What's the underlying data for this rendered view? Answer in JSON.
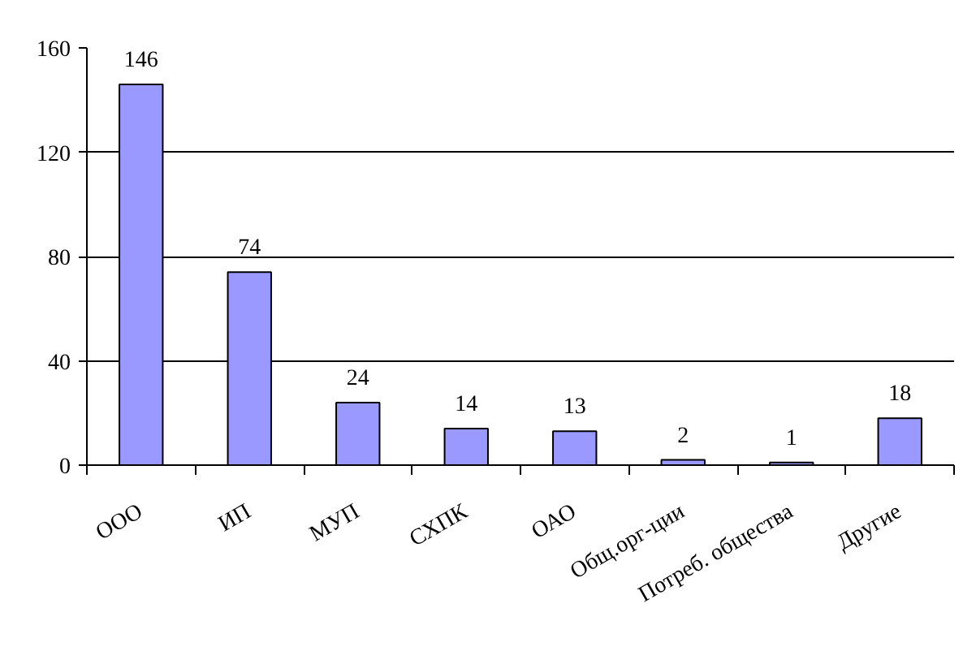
{
  "chart_data": {
    "type": "bar",
    "categories": [
      "ООО",
      "ИП",
      "МУП",
      "СХПК",
      "ОАО",
      "Общ.орг-ции",
      "Потреб. общества",
      "Другие"
    ],
    "values": [
      146,
      74,
      24,
      14,
      13,
      2,
      1,
      18
    ],
    "color": "#9999ff",
    "ylim": [
      0,
      160
    ],
    "yticks": [
      0,
      40,
      80,
      120,
      160
    ],
    "grid": "y",
    "data_labels": true
  }
}
